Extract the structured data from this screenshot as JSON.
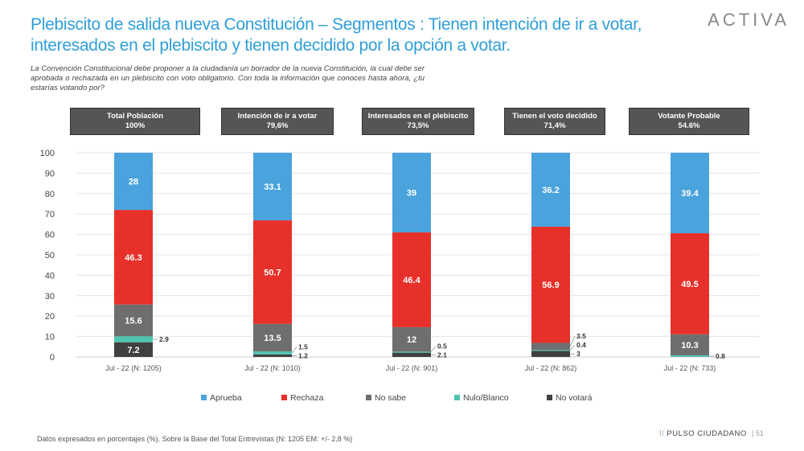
{
  "title": "Plebiscito de salida nueva Constitución – Segmentos : Tienen intención de ir a votar, interesados en el plebiscito y tienen decidido por la opción a votar.",
  "logo": "ACTIVA",
  "question": "La Convención Constitucional debe proponer a la ciudadanía un borrador de la nueva Constitución, la cual debe ser aprobada o rechazada en un plebiscito con voto obligatorio. Con toda la información que conoces hasta ahora, ¿tu estarías votando por?",
  "segments": [
    {
      "name": "Total Población",
      "pct": "100%"
    },
    {
      "name": "Intención de ir a  votar",
      "pct": "79,6%"
    },
    {
      "name": "Interesados en el plebiscito",
      "pct": "73,5%"
    },
    {
      "name": "Tienen el voto decidido",
      "pct": "71,4%"
    },
    {
      "name": "Votante Probable",
      "pct": "54.6%"
    }
  ],
  "chart_data": {
    "type": "bar",
    "stacked": true,
    "categories": [
      "Jul - 22 (N: 1205)",
      "Jul - 22 (N: 1010)",
      "Jul - 22 (N: 901)",
      "Jul - 22 (N: 862)",
      "Jul - 22 (N: 733)"
    ],
    "ylim": [
      0,
      100
    ],
    "yticks": [
      0,
      10,
      20,
      30,
      40,
      50,
      60,
      70,
      80,
      90,
      100
    ],
    "grid": true,
    "legend": "bottom",
    "series": [
      {
        "name": "No votará",
        "color": "#404040",
        "values": [
          7.2,
          1.2,
          2.1,
          3,
          0
        ]
      },
      {
        "name": "Nulo/Blanco",
        "color": "#4fc4b0",
        "values": [
          2.9,
          1.5,
          0.5,
          0.4,
          0.8
        ]
      },
      {
        "name": "No sabe",
        "color": "#6e6e6e",
        "values": [
          15.6,
          13.5,
          12,
          3.5,
          10.3
        ]
      },
      {
        "name": "Rechaza",
        "color": "#e8302a",
        "values": [
          46.3,
          50.7,
          46.4,
          56.9,
          49.5
        ]
      },
      {
        "name": "Aprueba",
        "color": "#4aa3dc",
        "values": [
          28,
          33.1,
          39,
          36.2,
          39.4
        ]
      }
    ],
    "legend_order": [
      "Aprueba",
      "Rechaza",
      "No sabe",
      "Nulo/Blanco",
      "No votará"
    ]
  },
  "footer": "Datos expresados en porcentajes (%). Sobre la Base del Total Entrevistas (N: 1205  EM: +/- 2,8 %)",
  "brand": "PULSO CIUDADANO",
  "page": "|   51"
}
